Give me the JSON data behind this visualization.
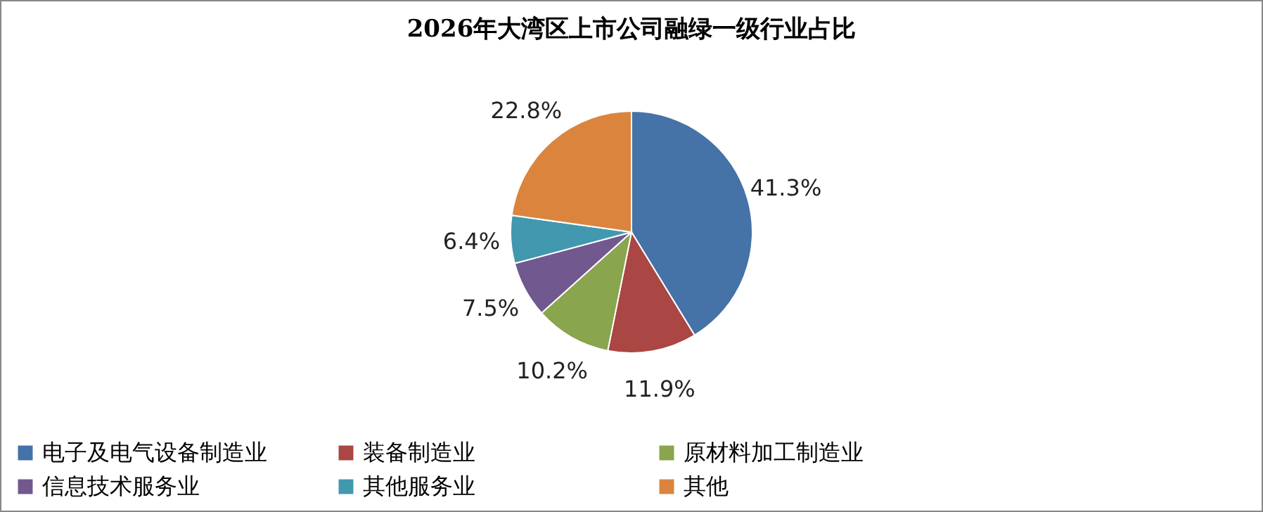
{
  "chart_data": {
    "type": "pie",
    "title": "2026年大湾区上市公司融绿一级行业占比",
    "categories": [
      "电子及电气设备制造业",
      "装备制造业",
      "原材料加工制造业",
      "信息技术服务业",
      "其他服务业",
      "其他"
    ],
    "values": [
      41.3,
      11.9,
      10.2,
      7.5,
      6.4,
      22.8
    ],
    "value_labels": [
      "41.3%",
      "11.9%",
      "10.2%",
      "7.5%",
      "6.4%",
      "22.8%"
    ],
    "colors": [
      "#4572a7",
      "#aa4643",
      "#89a54e",
      "#71588f",
      "#4198af",
      "#db843d"
    ],
    "legend": "bottom"
  }
}
